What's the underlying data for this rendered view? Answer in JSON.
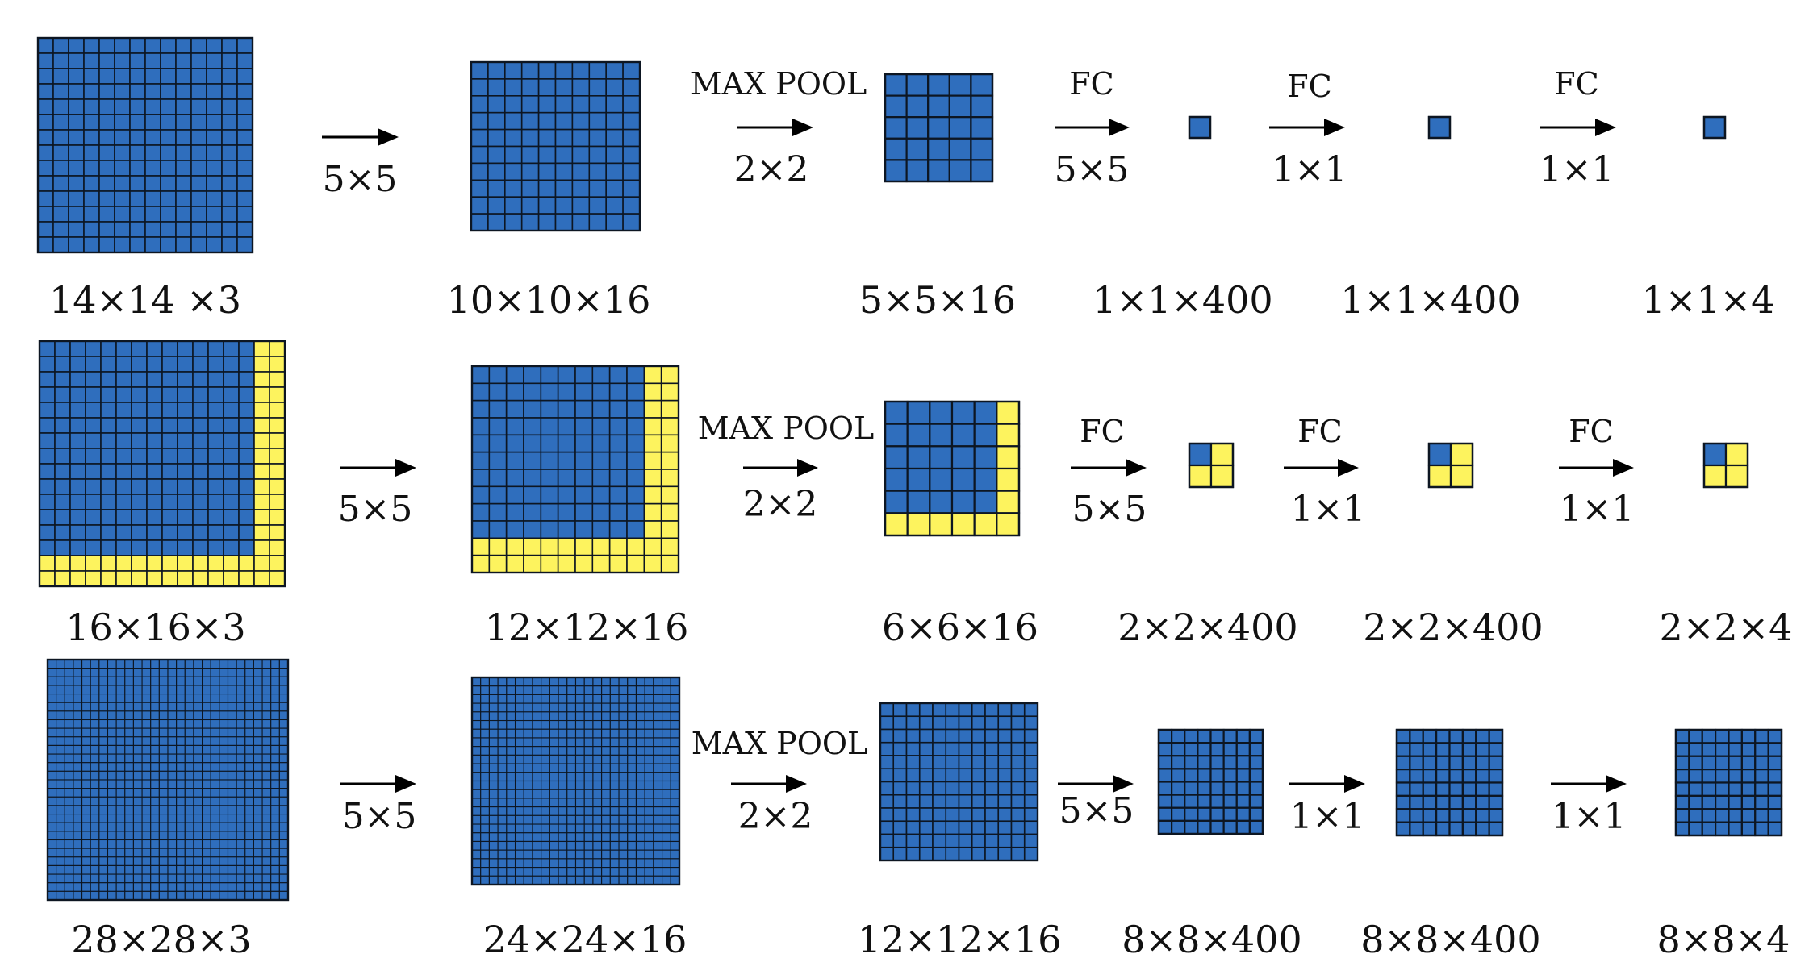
{
  "colors": {
    "blue": "#2f6ebd",
    "yellow": "#fdf35e",
    "grid_line": "#0d1622",
    "text": "#111111"
  },
  "rows": [
    {
      "grids": [
        {
          "n": 14,
          "yellow": 0,
          "label": "14×14 ×3"
        },
        {
          "n": 10,
          "yellow": 0,
          "label": "10×10×16"
        },
        {
          "n": 5,
          "yellow": 0,
          "label": "5×5×16"
        },
        {
          "n": 1,
          "yellow": 0,
          "label": "1×1×400"
        },
        {
          "n": 1,
          "yellow": 0,
          "label": "1×1×400"
        },
        {
          "n": 1,
          "yellow": 0,
          "label": "1×1×4"
        }
      ],
      "arrows": [
        {
          "op": "",
          "kernel": "5×5"
        },
        {
          "op": "MAX POOL",
          "kernel": "2×2"
        },
        {
          "op": "FC",
          "kernel": "5×5"
        },
        {
          "op": "FC",
          "kernel": "1×1"
        },
        {
          "op": "FC",
          "kernel": "1×1"
        }
      ]
    },
    {
      "grids": [
        {
          "n": 16,
          "yellow": 2,
          "label": "16×16×3"
        },
        {
          "n": 12,
          "yellow": 2,
          "label": "12×12×16"
        },
        {
          "n": 6,
          "yellow": 1,
          "label": "6×6×16"
        },
        {
          "n": 2,
          "yellow": 1,
          "label": "2×2×400"
        },
        {
          "n": 2,
          "yellow": 1,
          "label": "2×2×400"
        },
        {
          "n": 2,
          "yellow": 1,
          "label": "2×2×4"
        }
      ],
      "arrows": [
        {
          "op": "",
          "kernel": "5×5"
        },
        {
          "op": "MAX POOL",
          "kernel": "2×2"
        },
        {
          "op": "FC",
          "kernel": "5×5"
        },
        {
          "op": "FC",
          "kernel": "1×1"
        },
        {
          "op": "FC",
          "kernel": "1×1"
        }
      ]
    },
    {
      "grids": [
        {
          "n": 28,
          "yellow": 0,
          "label": "28×28×3"
        },
        {
          "n": 24,
          "yellow": 0,
          "label": "24×24×16"
        },
        {
          "n": 12,
          "yellow": 0,
          "label": "12×12×16"
        },
        {
          "n": 8,
          "yellow": 0,
          "label": "8×8×400"
        },
        {
          "n": 8,
          "yellow": 0,
          "label": "8×8×400"
        },
        {
          "n": 8,
          "yellow": 0,
          "label": "8×8×4"
        }
      ],
      "arrows": [
        {
          "op": "",
          "kernel": "5×5"
        },
        {
          "op": "MAX POOL",
          "kernel": "2×2"
        },
        {
          "op": "",
          "kernel": "5×5"
        },
        {
          "op": "",
          "kernel": "1×1"
        },
        {
          "op": "",
          "kernel": "1×1"
        }
      ]
    }
  ]
}
